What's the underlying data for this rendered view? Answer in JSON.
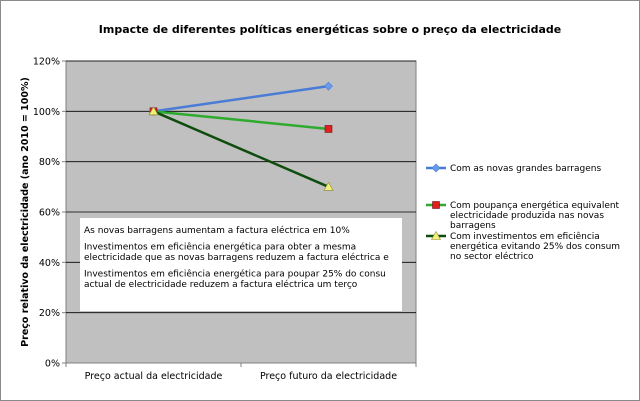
{
  "chart_data": {
    "type": "line",
    "title": "Impacte de diferentes políticas energéticas sobre o preço da electricidade",
    "ylabel": "Preço relativo da electricidade (ano 2010 = 100%)",
    "xlabel": "",
    "categories": [
      "Preço actual da electricidade",
      "Preço futuro da electricidade"
    ],
    "ylim": [
      0,
      120
    ],
    "yticks": [
      0,
      20,
      40,
      60,
      80,
      100,
      120
    ],
    "ytick_labels": [
      "0%",
      "20%",
      "40%",
      "60%",
      "80%",
      "100%",
      "120%"
    ],
    "grid": true,
    "legend_position": "right",
    "series": [
      {
        "name_lines": [
          "Com as novas grandes barragens"
        ],
        "values": [
          100,
          110
        ],
        "color": "#4a7cd6",
        "marker": "diamond",
        "marker_color": "#6a9bea"
      },
      {
        "name_lines": [
          "Com poupança energética equivalent",
          "electricidade produzida nas novas",
          "barragens"
        ],
        "values": [
          100,
          93
        ],
        "color": "#2eaa2e",
        "marker": "square",
        "marker_color": "#e02020"
      },
      {
        "name_lines": [
          "Com investimentos em eficiência",
          "energética evitando 25% dos consum",
          "no sector eléctrico"
        ],
        "values": [
          100,
          70
        ],
        "color": "#0f4d0f",
        "marker": "triangle",
        "marker_color": "#f2f07a"
      }
    ],
    "annotation": [
      "As novas barragens aumentam a factura eléctrica em 10%",
      "",
      "Investimentos em eficiência energética para obter a mesma",
      "electricidade que as novas barragens reduzem a factura eléctrica e",
      "",
      "Investimentos em eficiência energética para poupar 25% do consu",
      "actual de electricidade reduzem a factura eléctrica um terço"
    ],
    "plot_background": "#c0c0c0"
  }
}
